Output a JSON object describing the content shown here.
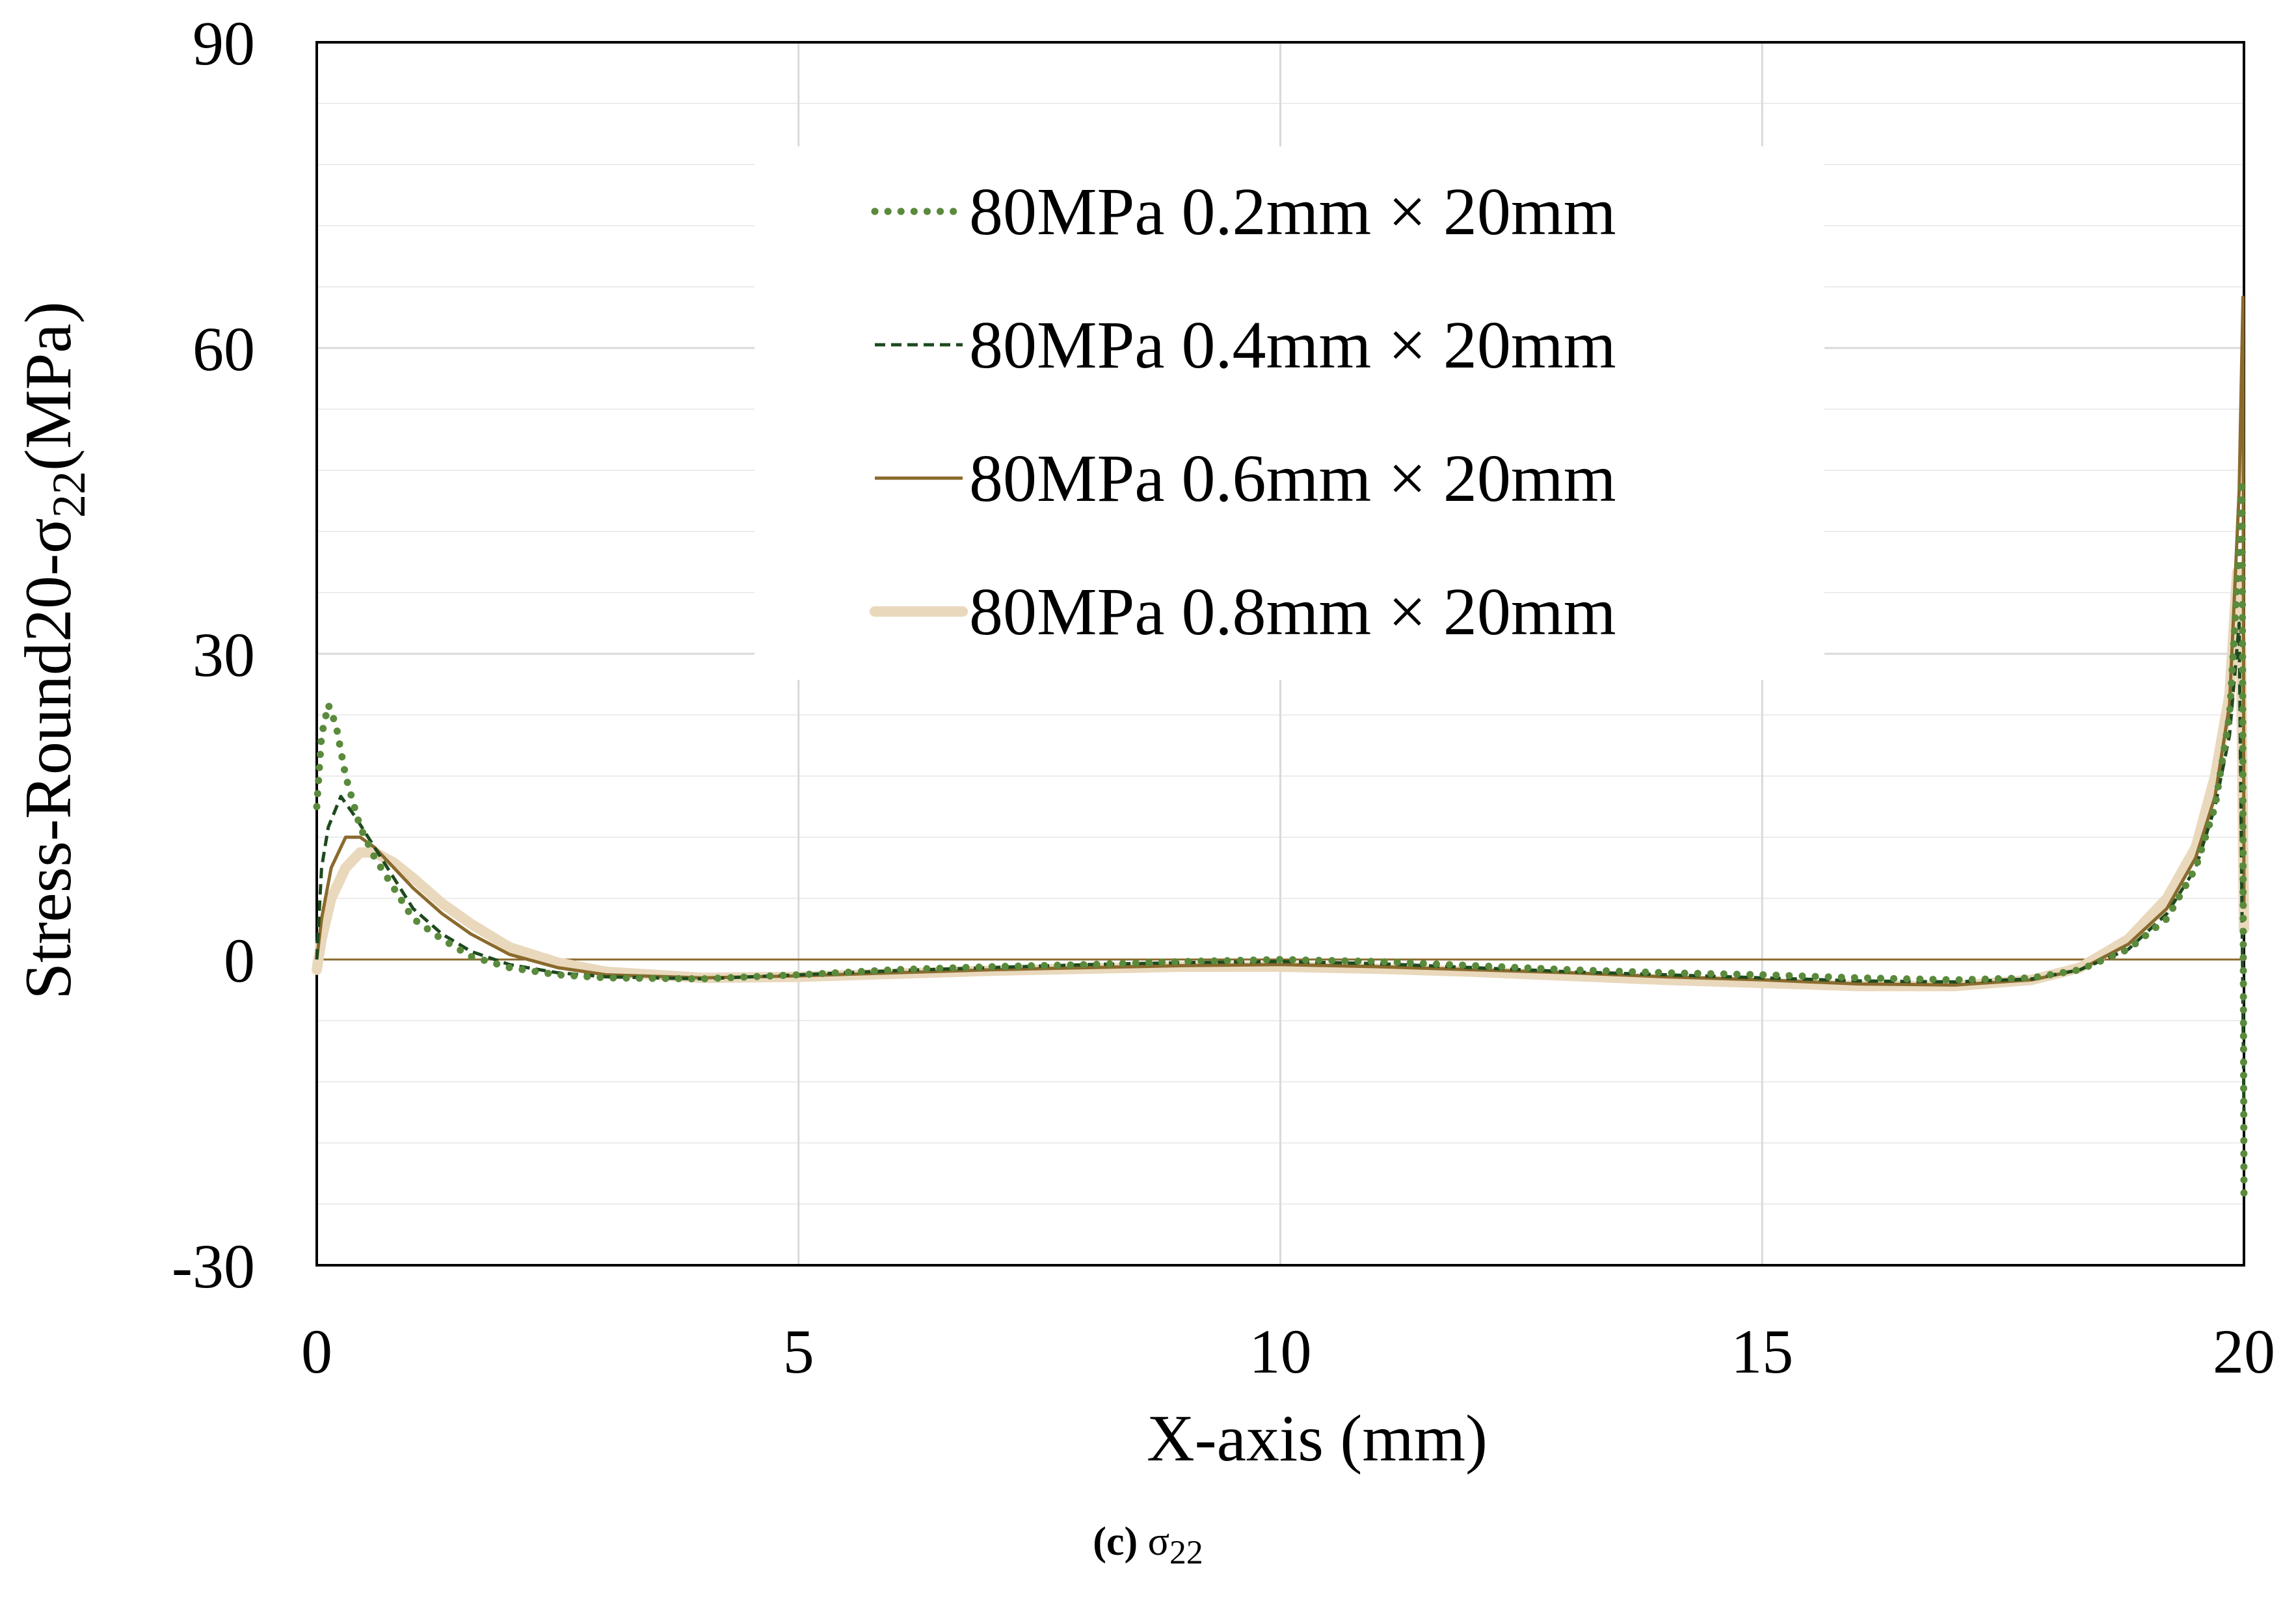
{
  "chart_data": {
    "type": "line",
    "title": "",
    "xlabel": "X-axis (mm)",
    "ylabel_main": "Stress-Round20-σ",
    "ylabel_sub": "22",
    "ylabel_tail": "(MPa)",
    "xlim": [
      0,
      20
    ],
    "ylim": [
      -30,
      90
    ],
    "xticks": [
      "0",
      "5",
      "10",
      "15",
      "20"
    ],
    "yticks": [
      "-30",
      "0",
      "30",
      "60",
      "90"
    ],
    "grid": true,
    "legend_position": "top-center",
    "series": [
      {
        "name": "80MPa 0.2mm × 20mm",
        "style": "dotted",
        "color": "#5a8a3c",
        "points": [
          [
            0,
            15
          ],
          [
            0.05,
            22
          ],
          [
            0.12,
            25
          ],
          [
            0.2,
            23
          ],
          [
            0.3,
            18
          ],
          [
            0.45,
            13
          ],
          [
            0.6,
            10
          ],
          [
            0.8,
            7
          ],
          [
            1.0,
            4
          ],
          [
            1.3,
            2
          ],
          [
            1.6,
            0.3
          ],
          [
            2.0,
            -0.8
          ],
          [
            2.5,
            -1.5
          ],
          [
            3.0,
            -1.8
          ],
          [
            4.0,
            -1.9
          ],
          [
            5.0,
            -1.5
          ],
          [
            6.0,
            -1.0
          ],
          [
            7.0,
            -0.7
          ],
          [
            8.0,
            -0.5
          ],
          [
            9.0,
            -0.2
          ],
          [
            10.0,
            0
          ],
          [
            11.0,
            -0.2
          ],
          [
            12.0,
            -0.6
          ],
          [
            13.0,
            -1.0
          ],
          [
            14.0,
            -1.3
          ],
          [
            15.0,
            -1.5
          ],
          [
            16.0,
            -1.8
          ],
          [
            17.0,
            -2.0
          ],
          [
            17.8,
            -1.8
          ],
          [
            18.3,
            -1.0
          ],
          [
            18.8,
            1.0
          ],
          [
            19.2,
            4.0
          ],
          [
            19.5,
            9
          ],
          [
            19.7,
            15
          ],
          [
            19.85,
            24
          ],
          [
            19.95,
            40
          ],
          [
            19.98,
            47
          ],
          [
            20.0,
            -23
          ]
        ]
      },
      {
        "name": "80MPa 0.4mm × 20mm",
        "style": "dashed",
        "color": "#1e4a1e",
        "points": [
          [
            0,
            0
          ],
          [
            0.05,
            9
          ],
          [
            0.12,
            13
          ],
          [
            0.25,
            16
          ],
          [
            0.4,
            14
          ],
          [
            0.6,
            11
          ],
          [
            0.8,
            8
          ],
          [
            1.0,
            5
          ],
          [
            1.3,
            2.5
          ],
          [
            1.6,
            0.8
          ],
          [
            2.0,
            -0.5
          ],
          [
            2.5,
            -1.3
          ],
          [
            3.0,
            -1.7
          ],
          [
            4.0,
            -1.9
          ],
          [
            5.0,
            -1.5
          ],
          [
            6.0,
            -1.1
          ],
          [
            7.0,
            -0.8
          ],
          [
            8.0,
            -0.5
          ],
          [
            9.0,
            -0.3
          ],
          [
            10.0,
            -0.2
          ],
          [
            11.0,
            -0.4
          ],
          [
            12.0,
            -0.8
          ],
          [
            13.0,
            -1.2
          ],
          [
            14.0,
            -1.5
          ],
          [
            15.0,
            -1.8
          ],
          [
            16.0,
            -2.1
          ],
          [
            17.0,
            -2.2
          ],
          [
            17.8,
            -1.9
          ],
          [
            18.3,
            -1.0
          ],
          [
            18.8,
            1.0
          ],
          [
            19.2,
            4.5
          ],
          [
            19.5,
            9
          ],
          [
            19.7,
            15
          ],
          [
            19.85,
            22
          ],
          [
            19.95,
            33
          ],
          [
            20.0,
            -15
          ]
        ]
      },
      {
        "name": "80MPa 0.6mm × 20mm",
        "style": "solid",
        "color": "#8a6a2c",
        "points": [
          [
            0,
            0
          ],
          [
            0.05,
            4
          ],
          [
            0.15,
            9
          ],
          [
            0.3,
            12
          ],
          [
            0.45,
            12
          ],
          [
            0.6,
            11
          ],
          [
            0.8,
            9
          ],
          [
            1.0,
            7
          ],
          [
            1.3,
            4.5
          ],
          [
            1.6,
            2.5
          ],
          [
            2.0,
            0.5
          ],
          [
            2.5,
            -0.8
          ],
          [
            3.0,
            -1.5
          ],
          [
            4.0,
            -1.8
          ],
          [
            5.0,
            -1.6
          ],
          [
            6.0,
            -1.3
          ],
          [
            7.0,
            -1.0
          ],
          [
            8.0,
            -0.8
          ],
          [
            9.0,
            -0.6
          ],
          [
            10.0,
            -0.5
          ],
          [
            11.0,
            -0.7
          ],
          [
            12.0,
            -1.0
          ],
          [
            13.0,
            -1.3
          ],
          [
            14.0,
            -1.7
          ],
          [
            15.0,
            -2.0
          ],
          [
            16.0,
            -2.4
          ],
          [
            17.0,
            -2.5
          ],
          [
            17.8,
            -2.0
          ],
          [
            18.3,
            -1.0
          ],
          [
            18.8,
            1.5
          ],
          [
            19.2,
            5
          ],
          [
            19.5,
            10
          ],
          [
            19.7,
            16
          ],
          [
            19.85,
            25
          ],
          [
            19.95,
            46
          ],
          [
            19.99,
            65
          ],
          [
            20.0,
            5
          ]
        ]
      },
      {
        "name": "80MPa 0.8mm × 20mm",
        "style": "thick",
        "color": "#e9d8bc",
        "points": [
          [
            0,
            -1
          ],
          [
            0.05,
            2
          ],
          [
            0.15,
            6
          ],
          [
            0.3,
            9
          ],
          [
            0.45,
            10.5
          ],
          [
            0.6,
            10.5
          ],
          [
            0.8,
            9.5
          ],
          [
            1.0,
            8
          ],
          [
            1.3,
            5.5
          ],
          [
            1.6,
            3.5
          ],
          [
            2.0,
            1.2
          ],
          [
            2.5,
            -0.3
          ],
          [
            3.0,
            -1.2
          ],
          [
            4.0,
            -1.8
          ],
          [
            5.0,
            -1.7
          ],
          [
            6.0,
            -1.4
          ],
          [
            7.0,
            -1.1
          ],
          [
            8.0,
            -0.9
          ],
          [
            9.0,
            -0.7
          ],
          [
            10.0,
            -0.7
          ],
          [
            11.0,
            -0.9
          ],
          [
            12.0,
            -1.2
          ],
          [
            13.0,
            -1.6
          ],
          [
            14.0,
            -2.0
          ],
          [
            15.0,
            -2.3
          ],
          [
            16.0,
            -2.6
          ],
          [
            17.0,
            -2.6
          ],
          [
            17.8,
            -2.0
          ],
          [
            18.3,
            -0.8
          ],
          [
            18.8,
            2.0
          ],
          [
            19.2,
            6
          ],
          [
            19.5,
            11
          ],
          [
            19.7,
            18
          ],
          [
            19.85,
            26
          ],
          [
            19.93,
            38
          ],
          [
            19.97,
            30
          ],
          [
            20.0,
            3
          ]
        ]
      }
    ]
  },
  "caption": {
    "label": "(c)",
    "symbol": "σ",
    "subscript": "22"
  }
}
